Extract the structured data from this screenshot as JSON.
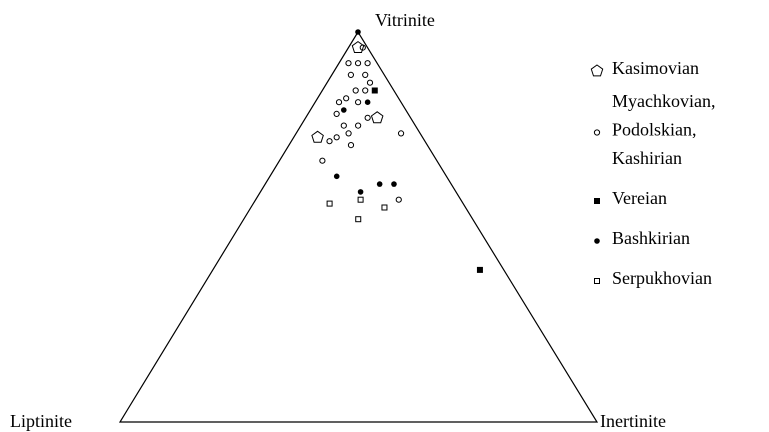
{
  "chart_data": {
    "type": "ternary",
    "axes": {
      "top": "Vitrinite",
      "left": "Liptinite",
      "right": "Inertinite"
    },
    "series": [
      {
        "name": "Kasimovian",
        "marker": "pentagon",
        "color": "#000000",
        "vitrinite": [
          96,
          78,
          73
        ],
        "inertinite": [
          2,
          15,
          5
        ],
        "liptinite": [
          2,
          7,
          22
        ]
      },
      {
        "name": "Myachkovian,\nPodolskian,\nKashirian",
        "marker": "open-circle",
        "color": "#000000",
        "vitrinite": [
          96,
          92,
          92,
          92,
          89,
          89,
          87,
          85,
          85,
          83,
          82,
          79,
          82,
          78,
          76,
          76,
          73,
          74,
          72,
          71,
          74,
          67,
          57
        ],
        "inertinite": [
          3,
          2,
          4,
          6,
          4,
          7,
          9,
          7,
          9,
          6,
          5,
          6,
          9,
          13,
          9,
          12,
          9,
          11,
          8,
          13,
          22,
          9,
          30
        ],
        "liptinite": [
          1,
          6,
          4,
          2,
          7,
          4,
          4,
          8,
          6,
          11,
          13,
          15,
          9,
          9,
          15,
          12,
          18,
          15,
          20,
          16,
          4,
          24,
          13
        ]
      },
      {
        "name": "Vereian",
        "marker": "filled-square",
        "color": "#000000",
        "vitrinite": [
          85,
          39
        ],
        "inertinite": [
          11,
          56
        ],
        "liptinite": [
          4,
          5
        ]
      },
      {
        "name": "Bashkirian",
        "marker": "filled-circle",
        "color": "#000000",
        "vitrinite": [
          100,
          82,
          80,
          63,
          59,
          61,
          61
        ],
        "inertinite": [
          0,
          11,
          7,
          14,
          21,
          24,
          27
        ],
        "liptinite": [
          0,
          7,
          13,
          23,
          20,
          15,
          12
        ]
      },
      {
        "name": "Serpukhovian",
        "marker": "open-square",
        "color": "#000000",
        "vitrinite": [
          56,
          57,
          55,
          52
        ],
        "inertinite": [
          16,
          22,
          28,
          24
        ],
        "liptinite": [
          28,
          21,
          17,
          24
        ]
      }
    ]
  }
}
